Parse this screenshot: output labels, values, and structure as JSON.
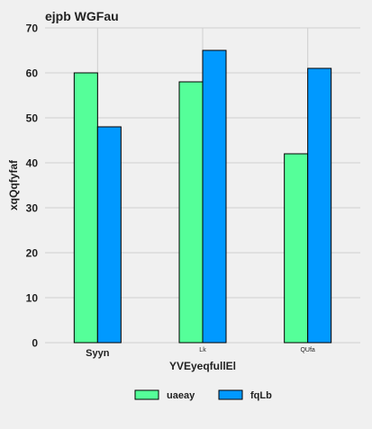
{
  "chart_data": {
    "type": "bar",
    "title": "ejpb WGFau",
    "xlabel": "YVEyeqfullEl",
    "ylabel": "xqQqfyfaf",
    "categories": [
      "Syyn",
      "Lk",
      "QUfa"
    ],
    "series": [
      {
        "name": "uaeay",
        "values": [
          60,
          58,
          42
        ],
        "color": "#55ff99"
      },
      {
        "name": "fqLb",
        "values": [
          48,
          65,
          61
        ],
        "color": "#0099ff"
      }
    ],
    "ylim": [
      0,
      70
    ],
    "yticks": [
      0,
      10,
      20,
      30,
      40,
      50,
      60,
      70
    ],
    "grid": true,
    "legend": "bottom-center"
  }
}
